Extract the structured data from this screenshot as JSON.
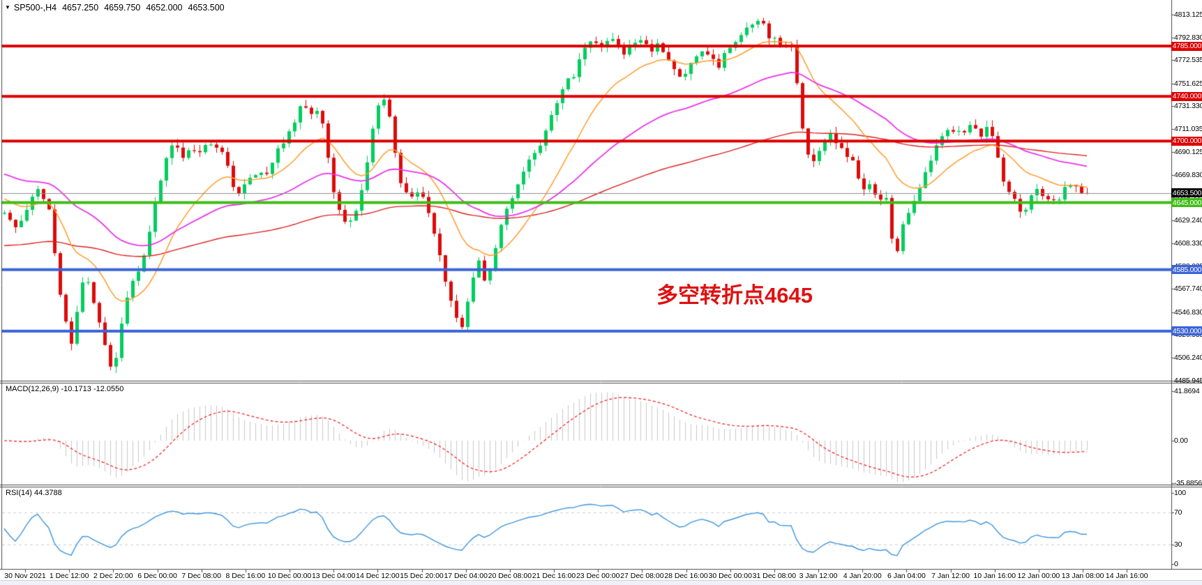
{
  "header": {
    "symbol_period": "SP500-,H4",
    "open": "4657.250",
    "high": "4659.750",
    "low": "4652.000",
    "close": "4653.500"
  },
  "chart_data": {
    "type": "candlestick",
    "symbol": "SP500-",
    "timeframe": "H4",
    "ohlc_current": {
      "open": 4657.25,
      "high": 4659.75,
      "low": 4652.0,
      "close": 4653.5
    },
    "colors": {
      "up": "#00ce5e",
      "down": "#dd0b0b",
      "resistance": "#dd0000",
      "pivot": "#3fbc16",
      "support": "#3a64d8",
      "bid_line": "#8f8f8f",
      "bid_box": "#000000",
      "macd_hist": "#c9c9c9",
      "macd_signal": "#f21818",
      "rsi_line": "#3d96dd",
      "annotation": "#e01010"
    },
    "y_axis": {
      "min": 4485.945,
      "max": 4813.125,
      "labels": [
        "4813.125",
        "4792.830",
        "4772.535",
        "4751.625",
        "4731.330",
        "4711.035",
        "4690.125",
        "4669.830",
        "4649.535",
        "4629.240",
        "4608.330",
        "4588.035",
        "4567.740",
        "4546.830",
        "4526.535",
        "4506.240",
        "4485.945"
      ]
    },
    "price_levels": [
      {
        "value": 4785.0,
        "label": "4785.000",
        "color": "#dd0000",
        "type": "resistance"
      },
      {
        "value": 4740.0,
        "label": "4740.000",
        "color": "#dd0000",
        "type": "resistance"
      },
      {
        "value": 4700.0,
        "label": "4700.000",
        "color": "#dd0000",
        "type": "resistance"
      },
      {
        "value": 4645.0,
        "label": "4645.000",
        "color": "#3fbc16",
        "type": "pivot"
      },
      {
        "value": 4585.0,
        "label": "4585.000",
        "color": "#3a64d8",
        "type": "support"
      },
      {
        "value": 4530.0,
        "label": "4530.000",
        "color": "#3a64d8",
        "type": "support"
      }
    ],
    "bid_line": {
      "value": 4653.5,
      "label": "4653.500"
    },
    "moving_averages": [
      {
        "name": "slow-ma",
        "color": "#dc2020",
        "period": 130,
        "seed": 4606,
        "width": 1.4
      },
      {
        "name": "fast-ma",
        "color": "#ff9d2b",
        "period": 16,
        "seed": 4650,
        "width": 1.5
      },
      {
        "name": "mid-ma",
        "color": "#ea33ea",
        "period": 48,
        "seed": 4672,
        "width": 1.8
      }
    ],
    "indicators": [
      {
        "name": "MACD",
        "params": "12,26,9",
        "values": [
          -10.1713,
          -12.055
        ],
        "label": "MACD(12,26,9) -10.1713 -12.0550",
        "axis": [
          {
            "v": 41.8694,
            "label": "41.8694"
          },
          {
            "v": 0,
            "label": "0.00"
          },
          {
            "v": -35.8856,
            "label": "-35.8856"
          }
        ]
      },
      {
        "name": "RSI",
        "params": "14",
        "value": 44.3788,
        "label": "RSI(14) 44.3788",
        "axis": [
          {
            "v": 100,
            "label": "100"
          },
          {
            "v": 70,
            "label": "70"
          },
          {
            "v": 30,
            "label": "30"
          },
          {
            "v": 0,
            "label": "0"
          }
        ],
        "guides": [
          70,
          30
        ]
      }
    ],
    "x_axis": {
      "labels": [
        "30 Nov 2021",
        "1 Dec 12:00",
        "2 Dec 20:00",
        "6 Dec 00:00",
        "7 Dec 08:00",
        "8 Dec 16:00",
        "10 Dec 00:00",
        "13 Dec 04:00",
        "14 Dec 12:00",
        "15 Dec 20:00",
        "17 Dec 04:00",
        "20 Dec 08:00",
        "21 Dec 16:00",
        "23 Dec 00:00",
        "27 Dec 08:00",
        "28 Dec 16:00",
        "30 Dec 00:00",
        "31 Dec 08:00",
        "3 Jan 12:00",
        "4 Jan 20:00",
        "6 Jan 04:00",
        "7 Jan 12:00",
        "10 Jan 16:00",
        "12 Jan 00:00",
        "13 Jan 08:00",
        "14 Jan 16:00"
      ]
    },
    "annotation": {
      "text": "多空转折点4645",
      "color": "#e01010"
    },
    "price_anchors": [
      [
        6,
        4635
      ],
      [
        22,
        4622
      ],
      [
        38,
        4640
      ],
      [
        55,
        4658
      ],
      [
        68,
        4645
      ],
      [
        80,
        4590
      ],
      [
        92,
        4540
      ],
      [
        102,
        4518
      ],
      [
        112,
        4555
      ],
      [
        122,
        4585
      ],
      [
        132,
        4560
      ],
      [
        142,
        4535
      ],
      [
        152,
        4512
      ],
      [
        163,
        4492
      ],
      [
        172,
        4530
      ],
      [
        182,
        4560
      ],
      [
        195,
        4580
      ],
      [
        208,
        4600
      ],
      [
        222,
        4645
      ],
      [
        235,
        4682
      ],
      [
        248,
        4695
      ],
      [
        262,
        4688
      ],
      [
        275,
        4692
      ],
      [
        288,
        4690
      ],
      [
        300,
        4697
      ],
      [
        312,
        4693
      ],
      [
        325,
        4680
      ],
      [
        338,
        4648
      ],
      [
        350,
        4660
      ],
      [
        365,
        4672
      ],
      [
        378,
        4668
      ],
      [
        392,
        4685
      ],
      [
        405,
        4700
      ],
      [
        418,
        4715
      ],
      [
        432,
        4733
      ],
      [
        445,
        4722
      ],
      [
        458,
        4730
      ],
      [
        468,
        4695
      ],
      [
        478,
        4655
      ],
      [
        488,
        4632
      ],
      [
        500,
        4628
      ],
      [
        512,
        4640
      ],
      [
        522,
        4668
      ],
      [
        534,
        4712
      ],
      [
        546,
        4742
      ],
      [
        555,
        4730
      ],
      [
        565,
        4695
      ],
      [
        578,
        4652
      ],
      [
        590,
        4650
      ],
      [
        602,
        4658
      ],
      [
        615,
        4630
      ],
      [
        628,
        4600
      ],
      [
        640,
        4570
      ],
      [
        652,
        4542
      ],
      [
        662,
        4533
      ],
      [
        674,
        4570
      ],
      [
        686,
        4590
      ],
      [
        696,
        4572
      ],
      [
        708,
        4600
      ],
      [
        720,
        4628
      ],
      [
        734,
        4648
      ],
      [
        748,
        4668
      ],
      [
        762,
        4685
      ],
      [
        775,
        4698
      ],
      [
        788,
        4718
      ],
      [
        800,
        4740
      ],
      [
        812,
        4752
      ],
      [
        824,
        4762
      ],
      [
        836,
        4778
      ],
      [
        848,
        4790
      ],
      [
        860,
        4785
      ],
      [
        872,
        4792
      ],
      [
        884,
        4788
      ],
      [
        896,
        4778
      ],
      [
        908,
        4788
      ],
      [
        920,
        4792
      ],
      [
        932,
        4780
      ],
      [
        944,
        4786
      ],
      [
        956,
        4778
      ],
      [
        968,
        4762
      ],
      [
        980,
        4756
      ],
      [
        992,
        4770
      ],
      [
        1004,
        4781
      ],
      [
        1016,
        4774
      ],
      [
        1028,
        4766
      ],
      [
        1040,
        4779
      ],
      [
        1052,
        4786
      ],
      [
        1064,
        4794
      ],
      [
        1076,
        4802
      ],
      [
        1088,
        4810
      ],
      [
        1098,
        4798
      ],
      [
        1110,
        4790
      ],
      [
        1122,
        4786
      ],
      [
        1134,
        4783
      ],
      [
        1144,
        4745
      ],
      [
        1154,
        4692
      ],
      [
        1164,
        4678
      ],
      [
        1176,
        4696
      ],
      [
        1188,
        4708
      ],
      [
        1200,
        4698
      ],
      [
        1212,
        4688
      ],
      [
        1224,
        4678
      ],
      [
        1236,
        4652
      ],
      [
        1248,
        4662
      ],
      [
        1260,
        4645
      ],
      [
        1272,
        4652
      ],
      [
        1282,
        4592
      ],
      [
        1292,
        4622
      ],
      [
        1304,
        4640
      ],
      [
        1316,
        4652
      ],
      [
        1328,
        4675
      ],
      [
        1340,
        4692
      ],
      [
        1352,
        4703
      ],
      [
        1364,
        4710
      ],
      [
        1376,
        4706
      ],
      [
        1388,
        4712
      ],
      [
        1398,
        4708
      ],
      [
        1408,
        4705
      ],
      [
        1416,
        4718
      ],
      [
        1426,
        4692
      ],
      [
        1438,
        4662
      ],
      [
        1450,
        4652
      ],
      [
        1462,
        4634
      ],
      [
        1472,
        4642
      ],
      [
        1482,
        4658
      ],
      [
        1494,
        4652
      ],
      [
        1506,
        4644
      ],
      [
        1518,
        4650
      ],
      [
        1530,
        4660
      ],
      [
        1542,
        4662
      ],
      [
        1554,
        4654
      ],
      [
        1562,
        4653.5
      ]
    ]
  }
}
